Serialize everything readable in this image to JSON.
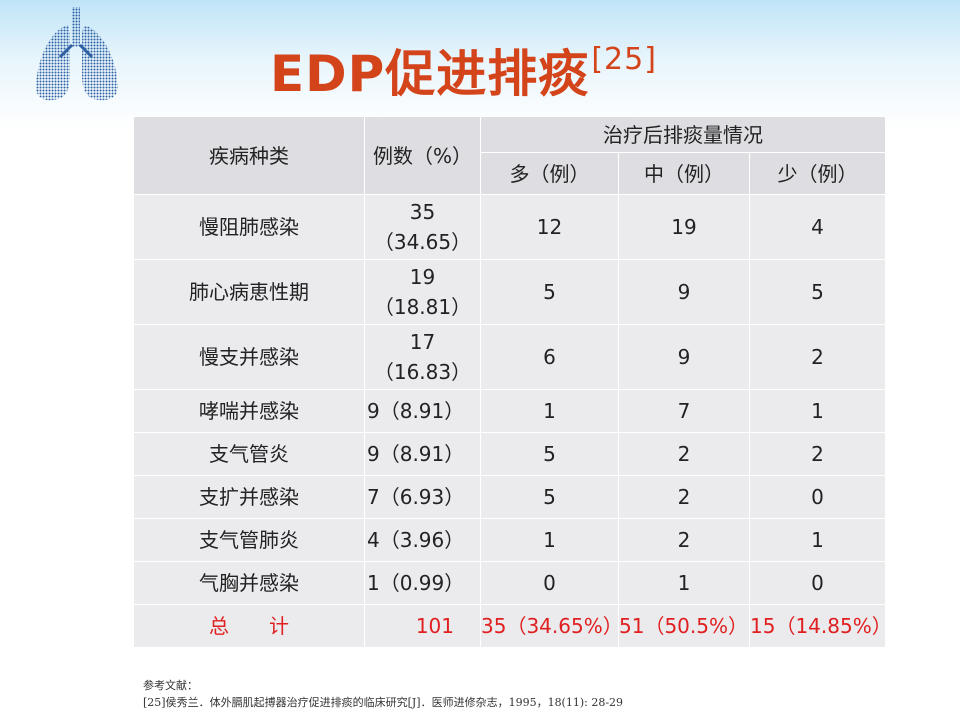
{
  "slide": {
    "title": "EDP促进排痰",
    "title_ref": "[25]"
  },
  "table": {
    "headers": {
      "disease": "疾病种类",
      "count": "例数（%）",
      "group": "治疗后排痰量情况",
      "more": "多（例）",
      "medium": "中（例）",
      "less": "少（例）"
    },
    "rows": [
      {
        "disease": "慢阻肺感染",
        "count": "35",
        "pct": "（34.65）",
        "more": "12",
        "medium": "19",
        "less": "4"
      },
      {
        "disease": "肺心病恵性期",
        "count": "19",
        "pct": "（18.81）",
        "more": "5",
        "medium": "9",
        "less": "5"
      },
      {
        "disease": "慢支并感染",
        "count": "17",
        "pct": "（16.83）",
        "more": "6",
        "medium": "9",
        "less": "2"
      },
      {
        "disease": "哮喘并感染",
        "count": "9（8.91）",
        "more": "1",
        "medium": "7",
        "less": "1"
      },
      {
        "disease": "支气管炎",
        "count": "9（8.91）",
        "more": "5",
        "medium": "2",
        "less": "2"
      },
      {
        "disease": "支扩并感染",
        "count": "7（6.93）",
        "more": "5",
        "medium": "2",
        "less": "0"
      },
      {
        "disease": "支气管肺炎",
        "count": "4（3.96）",
        "more": "1",
        "medium": "2",
        "less": "1"
      },
      {
        "disease": "气胸并感染",
        "count": "1（0.99）",
        "more": "0",
        "medium": "1",
        "less": "0"
      }
    ],
    "total": {
      "label": "总　　计",
      "count": "101",
      "more": "35（34.65%）",
      "medium": "51（50.5%）",
      "less": "15（14.85%）"
    }
  },
  "references": {
    "heading": "参考文献：",
    "item": "[25]侯秀兰．体外膈肌起搏器治疗促进排痰的临床研究[J]．医师进修杂志，1995，18(11): 28-29"
  },
  "colors": {
    "title": "#d4441a",
    "header_cell": "#dedee2",
    "body_cell": "#ebebee",
    "total_text": "#e02020"
  }
}
